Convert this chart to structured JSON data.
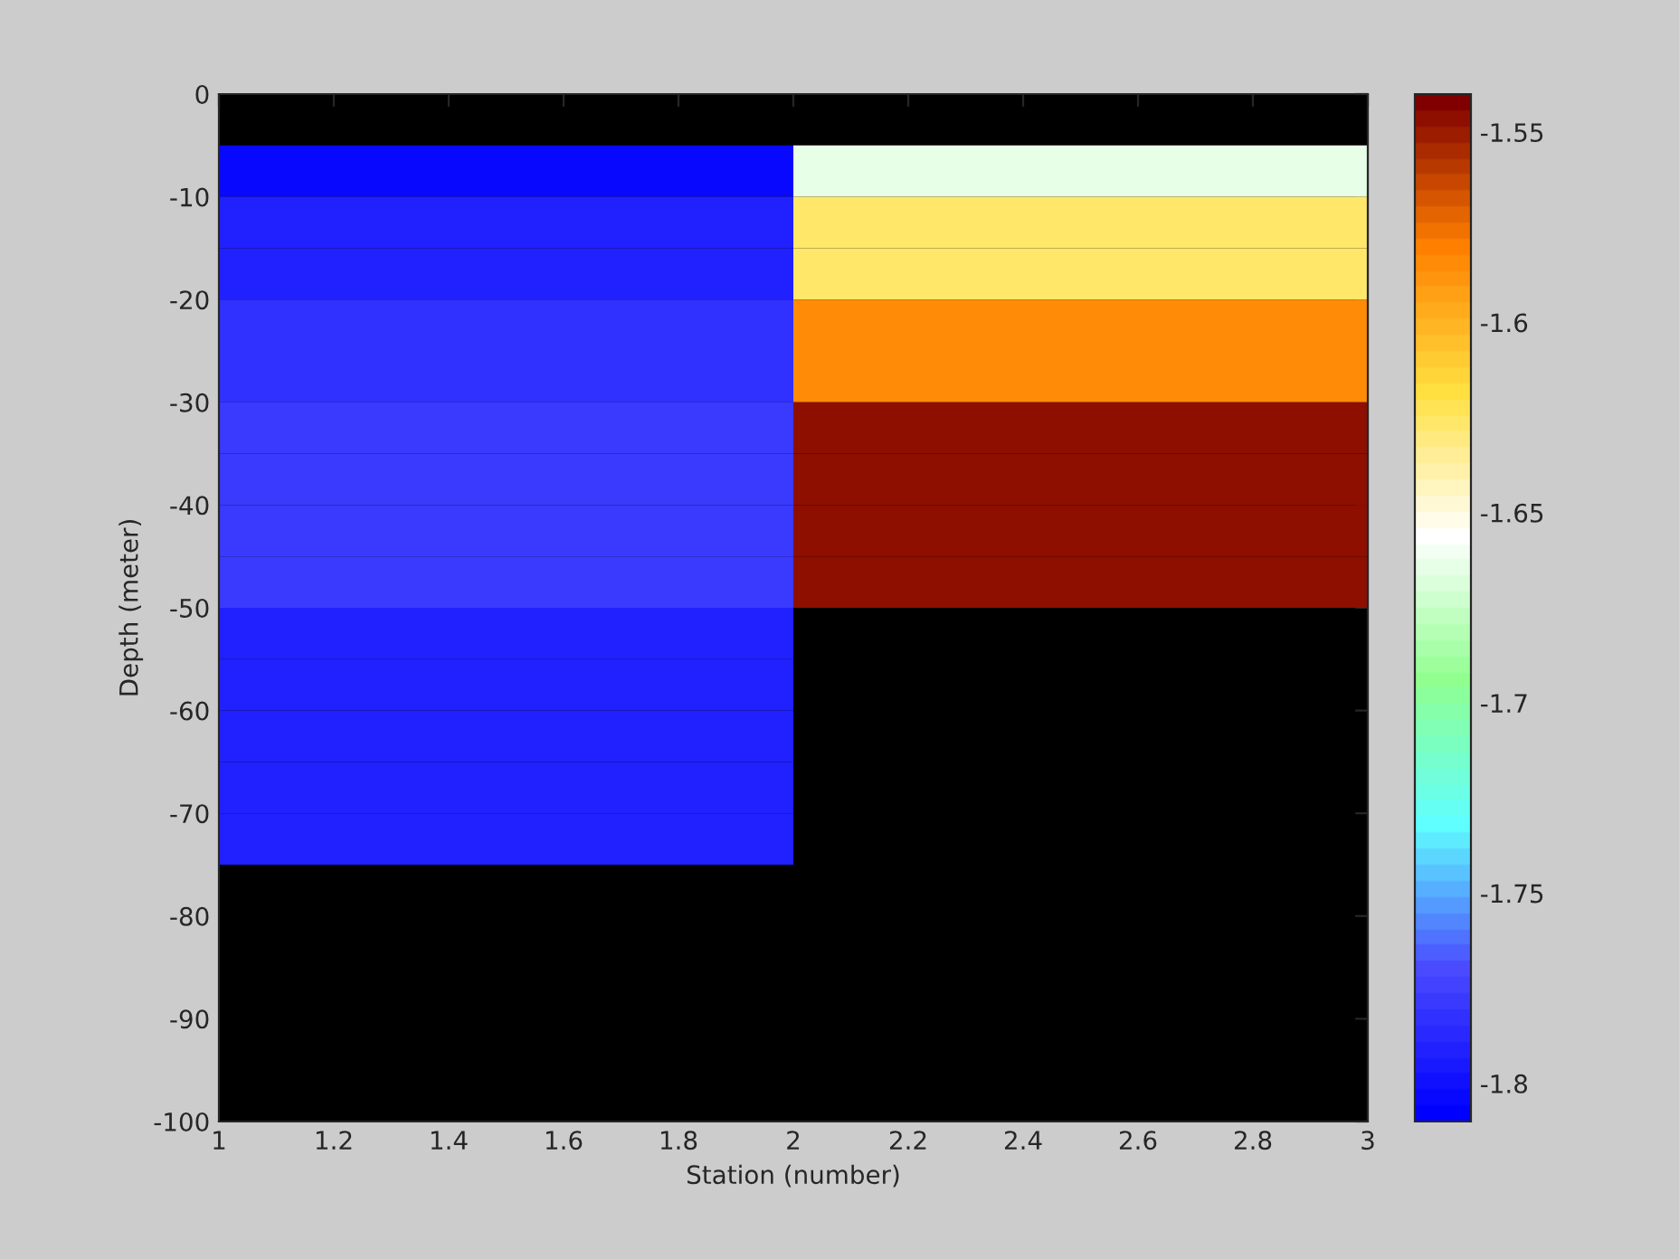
{
  "chart_data": {
    "type": "heatmap",
    "xlabel": "Station (number)",
    "ylabel": "Depth (meter)",
    "x": [
      1.5,
      2.5
    ],
    "y": [
      -7.5,
      -12.5,
      -17.5,
      -22.5,
      -27.5,
      -32.5,
      -37.5,
      -42.5,
      -47.5,
      -52.5,
      -57.5,
      -62.5,
      -67.5,
      -72.5
    ],
    "cells": [
      [
        -1.805,
        -1.665
      ],
      [
        -1.79,
        -1.625
      ],
      [
        -1.79,
        -1.625
      ],
      [
        -1.782,
        -1.585
      ],
      [
        -1.782,
        -1.585
      ],
      [
        -1.778,
        -1.545
      ],
      [
        -1.778,
        -1.545
      ],
      [
        -1.778,
        -1.545
      ],
      [
        -1.778,
        -1.545
      ],
      [
        -1.79,
        null
      ],
      [
        -1.79,
        null
      ],
      [
        -1.79,
        null
      ],
      [
        -1.79,
        null
      ],
      [
        -1.79,
        null
      ]
    ],
    "xlim": [
      1,
      3
    ],
    "xticks": [
      1,
      1.2,
      1.4,
      1.6,
      1.8,
      2,
      2.2,
      2.4,
      2.6,
      2.8,
      3
    ],
    "ylim": [
      -100,
      0
    ],
    "yticks": [
      -100,
      -90,
      -80,
      -70,
      -60,
      -50,
      -40,
      -30,
      -20,
      -10,
      0
    ],
    "clim": [
      -1.81,
      -1.54
    ],
    "cticks": [
      -1.8,
      -1.75,
      -1.7,
      -1.65,
      -1.6,
      -1.55
    ],
    "colors": [
      "#0000ff",
      "#4a4aff",
      "#60ffff",
      "#90ff90",
      "#ffffff",
      "#ffe040",
      "#ff8000",
      "#800000"
    ]
  }
}
